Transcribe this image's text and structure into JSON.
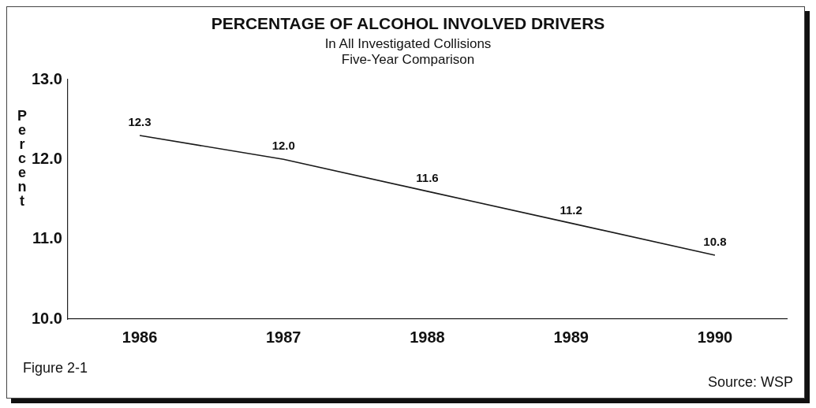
{
  "chart_data": {
    "type": "line",
    "title": "PERCENTAGE OF ALCOHOL INVOLVED DRIVERS",
    "subtitle": "In All Investigated Collisions\nFive-Year Comparison",
    "ylabel": "Percent",
    "categories": [
      "1986",
      "1987",
      "1988",
      "1989",
      "1990"
    ],
    "series": [
      {
        "color": "#1a1a1a",
        "values": [
          12.3,
          12.0,
          11.6,
          11.2,
          10.8
        ],
        "value_labels": [
          "12.3",
          "12.0",
          "11.6",
          "11.2",
          "10.8"
        ]
      }
    ],
    "ylim": [
      10,
      13
    ],
    "yticks": [
      {
        "value": 10,
        "label": "10.0"
      },
      {
        "value": 11,
        "label": "11.0"
      },
      {
        "value": 12,
        "label": "12.0"
      },
      {
        "value": 13,
        "label": "13.0"
      }
    ],
    "grid": false,
    "legend": false,
    "marker": "none",
    "line_style": "solid",
    "annotations": [
      "Figure 2-1",
      "Source: WSP"
    ]
  }
}
